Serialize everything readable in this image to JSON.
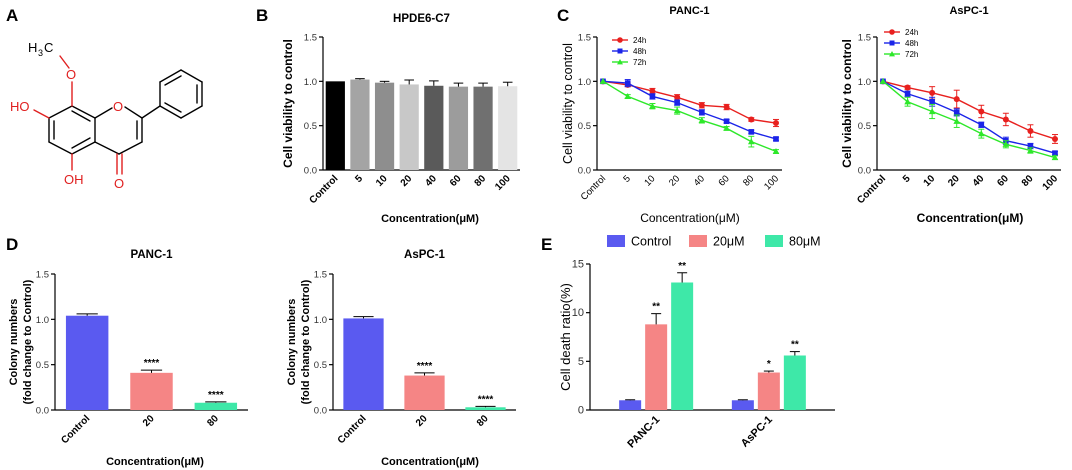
{
  "panel_labels": [
    "A",
    "B",
    "C",
    "D",
    "E"
  ],
  "molecule": {
    "substituents": {
      "methoxy_c": "H",
      "methoxy_sub": "3",
      "methoxy_tail": "C",
      "oh_left": "HO",
      "oh_bottom": "OH",
      "ring_o": "O",
      "carbonyl_o": "O"
    }
  },
  "colors": {
    "h24": "#e8201e",
    "h48": "#1b24e8",
    "h72": "#2ee82a",
    "control": "#5a5af0",
    "c20": "#f58585",
    "c80": "#3ee8a8",
    "chem_red": "#e02020",
    "chem_black": "#000000"
  },
  "chart_data": [
    {
      "id": "B",
      "type": "bar",
      "title": "HPDE6-C7",
      "xlabel": "Concentration(μM)",
      "ylabel": "Cell viability to control",
      "ylim": [
        0,
        1.5
      ],
      "yticks": [
        "0.0",
        "0.5",
        "1.0",
        "1.5"
      ],
      "categories": [
        "Control",
        "5",
        "10",
        "20",
        "40",
        "60",
        "80",
        "100"
      ],
      "values": [
        1.0,
        1.02,
        0.985,
        0.965,
        0.95,
        0.94,
        0.94,
        0.945
      ],
      "errors": [
        0.0,
        0.01,
        0.015,
        0.05,
        0.055,
        0.04,
        0.04,
        0.045
      ],
      "bar_colors": [
        "#000000",
        "#a4a4a4",
        "#8e8e8e",
        "#c8c8c8",
        "#5a5a5a",
        "#9c9c9c",
        "#707070",
        "#e4e4e4"
      ]
    },
    {
      "id": "C1",
      "type": "line",
      "title": "PANC-1",
      "xlabel": "Concentration(μM)",
      "ylabel": "Cell viability to control",
      "ylim": [
        0,
        1.5
      ],
      "yticks": [
        "0.0",
        "0.5",
        "1.0",
        "1.5"
      ],
      "categories": [
        "Control",
        "5",
        "10",
        "20",
        "40",
        "60",
        "80",
        "100"
      ],
      "series": [
        {
          "name": "24h",
          "values": [
            1.0,
            0.96,
            0.89,
            0.82,
            0.73,
            0.71,
            0.57,
            0.53
          ],
          "errors": [
            0.01,
            0.02,
            0.03,
            0.03,
            0.03,
            0.03,
            0.02,
            0.04
          ]
        },
        {
          "name": "48h",
          "values": [
            1.0,
            0.98,
            0.83,
            0.76,
            0.65,
            0.55,
            0.43,
            0.35
          ],
          "errors": [
            0.01,
            0.04,
            0.03,
            0.03,
            0.03,
            0.02,
            0.02,
            0.02
          ]
        },
        {
          "name": "72h",
          "values": [
            1.0,
            0.83,
            0.72,
            0.67,
            0.56,
            0.47,
            0.32,
            0.21
          ],
          "errors": [
            0.01,
            0.02,
            0.03,
            0.04,
            0.03,
            0.02,
            0.06,
            0.02
          ]
        }
      ]
    },
    {
      "id": "C2",
      "type": "line",
      "title": "AsPC-1",
      "xlabel": "Concentration(μM)",
      "ylabel": "Cell viability to control",
      "ylim": [
        0,
        1.5
      ],
      "yticks": [
        "0.0",
        "0.5",
        "1.0",
        "1.5"
      ],
      "categories": [
        "Control",
        "5",
        "10",
        "20",
        "40",
        "60",
        "80",
        "100"
      ],
      "series": [
        {
          "name": "24h",
          "values": [
            1.0,
            0.93,
            0.87,
            0.8,
            0.66,
            0.57,
            0.44,
            0.35
          ],
          "errors": [
            0.01,
            0.02,
            0.07,
            0.1,
            0.07,
            0.07,
            0.07,
            0.05
          ]
        },
        {
          "name": "48h",
          "values": [
            1.0,
            0.86,
            0.77,
            0.65,
            0.51,
            0.33,
            0.27,
            0.19
          ],
          "errors": [
            0.01,
            0.03,
            0.05,
            0.04,
            0.03,
            0.04,
            0.03,
            0.02
          ]
        },
        {
          "name": "72h",
          "values": [
            1.0,
            0.77,
            0.66,
            0.55,
            0.41,
            0.29,
            0.22,
            0.14
          ],
          "errors": [
            0.01,
            0.05,
            0.08,
            0.07,
            0.05,
            0.04,
            0.03,
            0.02
          ]
        }
      ]
    },
    {
      "id": "D1",
      "type": "bar",
      "title": "PANC-1",
      "xlabel": "Concentration(μM)",
      "ylabel": "Colony numbers",
      "ylabel2": "(fold change to Control)",
      "ylim": [
        0,
        1.5
      ],
      "yticks": [
        "0.0",
        "0.5",
        "1.0",
        "1.5"
      ],
      "categories": [
        "Control",
        "20",
        "80"
      ],
      "values": [
        1.04,
        0.41,
        0.08
      ],
      "errors": [
        0.02,
        0.03,
        0.01
      ],
      "annotations": [
        "",
        "****",
        "****"
      ],
      "bar_colors": [
        "#5a5af0",
        "#f58585",
        "#3ee8a8"
      ]
    },
    {
      "id": "D2",
      "type": "bar",
      "title": "AsPC-1",
      "xlabel": "Concentration(μM)",
      "ylabel": "Colony numbers",
      "ylabel2": "(fold change to Control)",
      "ylim": [
        0,
        1.5
      ],
      "yticks": [
        "0.0",
        "0.5",
        "1.0",
        "1.5"
      ],
      "categories": [
        "Control",
        "20",
        "80"
      ],
      "values": [
        1.01,
        0.38,
        0.03
      ],
      "errors": [
        0.02,
        0.03,
        0.01
      ],
      "annotations": [
        "",
        "****",
        "****"
      ],
      "bar_colors": [
        "#5a5af0",
        "#f58585",
        "#3ee8a8"
      ]
    },
    {
      "id": "E",
      "type": "bar",
      "title": "",
      "xlabel": "",
      "ylabel": "Cell death ratio(%)",
      "ylim": [
        0,
        15
      ],
      "yticks": [
        "0",
        "5",
        "10",
        "15"
      ],
      "categories": [
        "PANC-1",
        "AsPC-1"
      ],
      "legend": [
        "Control",
        "20μM",
        "80μM"
      ],
      "series": [
        {
          "name": "Control",
          "values": [
            1.0,
            1.0
          ],
          "errors": [
            0.05,
            0.05
          ],
          "annotations": [
            "",
            ""
          ]
        },
        {
          "name": "20μM",
          "values": [
            8.8,
            3.85
          ],
          "errors": [
            1.1,
            0.15
          ],
          "annotations": [
            "**",
            "*"
          ]
        },
        {
          "name": "80μM",
          "values": [
            13.1,
            5.6
          ],
          "errors": [
            1.0,
            0.4
          ],
          "annotations": [
            "**",
            "**"
          ]
        }
      ]
    }
  ]
}
